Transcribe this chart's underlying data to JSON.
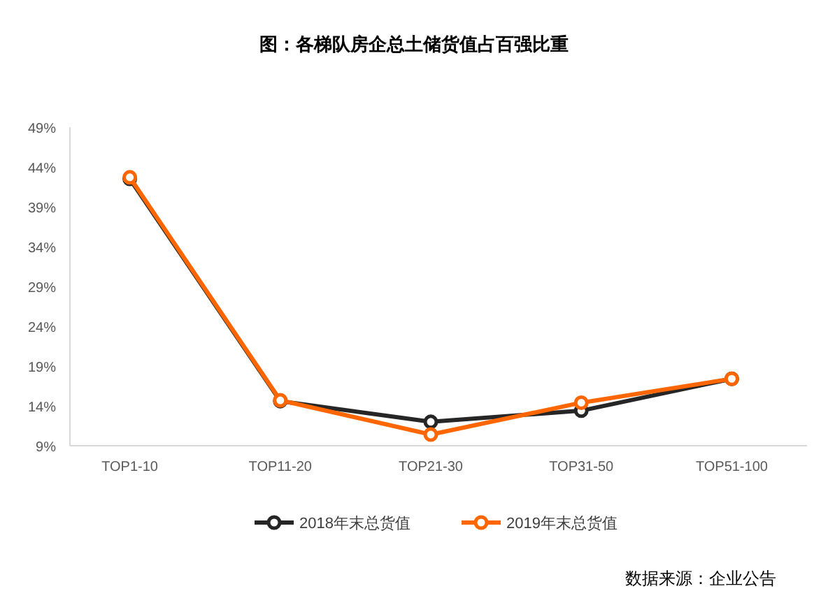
{
  "chart_data": {
    "type": "line",
    "title": "图：各梯队房企总土储货值占百强比重",
    "categories": [
      "TOP1-10",
      "TOP11-20",
      "TOP21-30",
      "TOP31-50",
      "TOP51-100"
    ],
    "series": [
      {
        "name": "2018年末总货值",
        "color": "#262626",
        "values": [
          42.5,
          14.6,
          12.0,
          13.4,
          17.4
        ]
      },
      {
        "name": "2019年末总货值",
        "color": "#ff6600",
        "values": [
          42.7,
          14.7,
          10.4,
          14.4,
          17.4
        ]
      }
    ],
    "ylim": [
      9,
      49
    ],
    "yticks": [
      {
        "value": 9,
        "label": "9%"
      },
      {
        "value": 14,
        "label": "14%"
      },
      {
        "value": 19,
        "label": "19%"
      },
      {
        "value": 24,
        "label": "24%"
      },
      {
        "value": 29,
        "label": "29%"
      },
      {
        "value": 34,
        "label": "34%"
      },
      {
        "value": 39,
        "label": "39%"
      },
      {
        "value": 44,
        "label": "44%"
      },
      {
        "value": 49,
        "label": "49%"
      }
    ],
    "marker": "circle",
    "grid": false,
    "legend": "bottom",
    "annotations": [
      "数据来源：企业公告"
    ]
  }
}
